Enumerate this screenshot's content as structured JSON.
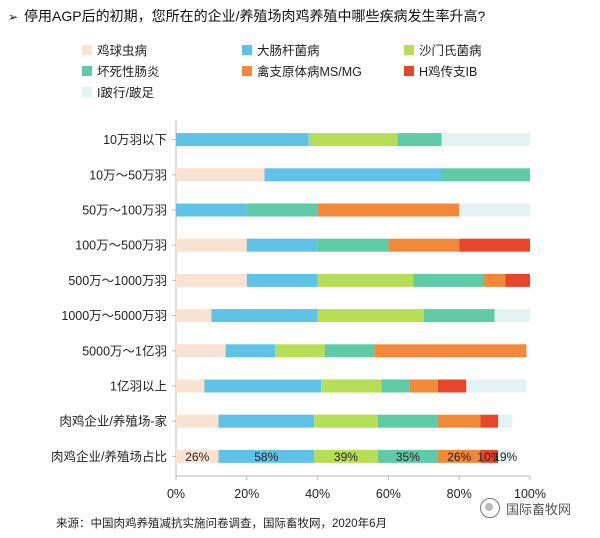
{
  "question": {
    "text": "停用AGP后的初期，您所在的企业/养殖场肉鸡养殖中哪些疾病发生率升高?"
  },
  "source": "来源：中国肉鸡养殖减抗实施问卷调查，国际畜牧网，2020年6月",
  "watermark": "国际畜牧网",
  "chart_data": {
    "type": "bar",
    "orientation": "horizontal",
    "stacked": true,
    "xlim": [
      0,
      100
    ],
    "xticks": [
      "0%",
      "20%",
      "40%",
      "60%",
      "80%",
      "100%"
    ],
    "categories": [
      "10万羽以下",
      "10万～50万羽",
      "50万～100万羽",
      "100万～500万羽",
      "500万～1000万羽",
      "1000万～5000万羽",
      "5000万～1亿羽",
      "1亿羽以上",
      "肉鸡企业/养殖场-家",
      "肉鸡企业/养殖场占比"
    ],
    "series": [
      {
        "name": "鸡球虫病",
        "color": "#fbe3d3",
        "values": [
          0,
          25,
          0,
          20,
          20,
          10,
          14,
          8,
          12,
          12
        ]
      },
      {
        "name": "大肠杆菌病",
        "color": "#5fc3e8",
        "values": [
          37.5,
          50,
          20,
          20,
          20,
          30,
          14,
          33,
          27,
          27
        ]
      },
      {
        "name": "沙门氏菌病",
        "color": "#b6de56",
        "values": [
          25,
          0,
          0,
          0,
          27,
          30,
          14,
          17,
          18,
          18
        ]
      },
      {
        "name": "坏死性肠炎",
        "color": "#5fcaa6",
        "values": [
          12.5,
          25,
          20,
          20,
          20,
          20,
          14,
          8,
          17,
          17
        ]
      },
      {
        "name": "禽支原体病MS/MG",
        "color": "#f3883a",
        "values": [
          0,
          0,
          40,
          20,
          6,
          0,
          43,
          8,
          12,
          12
        ]
      },
      {
        "name": "H鸡传支IB",
        "color": "#e8452c",
        "values": [
          0,
          0,
          0,
          20,
          7,
          0,
          0,
          8,
          5,
          5
        ]
      },
      {
        "name": "I跛行/跛足",
        "color": "#e2f3f2",
        "values": [
          25,
          0,
          20,
          0,
          0,
          10,
          0,
          17,
          4,
          4
        ]
      }
    ],
    "data_labels": [
      {
        "category": "肉鸡企业/养殖场占比",
        "series": "鸡球虫病",
        "text": "26%"
      },
      {
        "category": "肉鸡企业/养殖场占比",
        "series": "大肠杆菌病",
        "text": "58%"
      },
      {
        "category": "肉鸡企业/养殖场占比",
        "series": "沙门氏菌病",
        "text": "39%"
      },
      {
        "category": "肉鸡企业/养殖场占比",
        "series": "坏死性肠炎",
        "text": "35%"
      },
      {
        "category": "肉鸡企业/养殖场占比",
        "series": "禽支原体病MS/MG",
        "text": "26%"
      },
      {
        "category": "肉鸡企业/养殖场占比",
        "series": "H鸡传支IB",
        "text": "10%"
      },
      {
        "category": "肉鸡企业/养殖场占比",
        "series": "I跛行/跛足",
        "text": "19%"
      }
    ],
    "grid": false,
    "legend_position": "top"
  }
}
